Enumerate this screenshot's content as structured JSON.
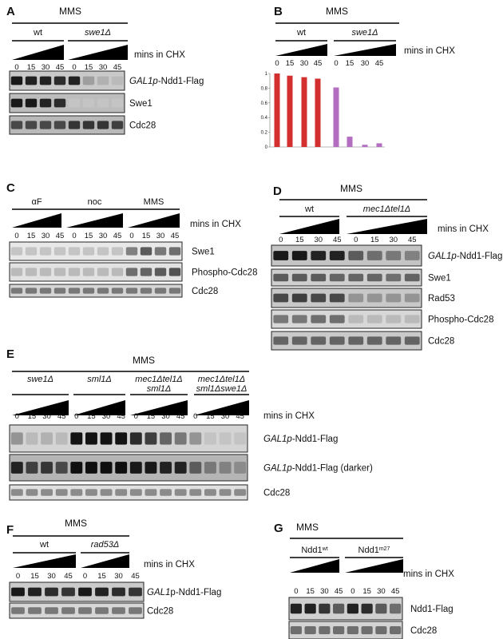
{
  "panels": [
    {
      "id": "A",
      "letter": "A",
      "header": "MMS",
      "mins_label": "mins in CHX",
      "groups": [
        {
          "label": [
            {
              "t": "wt"
            }
          ]
        },
        {
          "label": [
            {
              "t": "swe1Δ",
              "i": true
            }
          ]
        }
      ],
      "timepoints": [
        "0",
        "15",
        "30",
        "45"
      ],
      "blots": [
        {
          "label": [
            {
              "t": "GAL1p",
              "i": true
            },
            {
              "t": "-Ndd1-Flag"
            }
          ],
          "bands": [
            0.95,
            0.9,
            0.9,
            0.85,
            0.9,
            0.25,
            0.15,
            0.1
          ],
          "bg": "#c9c9c9"
        },
        {
          "label": [
            {
              "t": "Swe1"
            }
          ],
          "bands": [
            0.95,
            0.95,
            0.9,
            0.85,
            0.05,
            0.05,
            0.05,
            0.05
          ],
          "bg": "#bdbdbd"
        },
        {
          "label": [
            {
              "t": "Cdc28"
            }
          ],
          "bands": [
            0.7,
            0.7,
            0.7,
            0.7,
            0.8,
            0.8,
            0.8,
            0.75
          ],
          "bg": "#b9b9b9"
        }
      ]
    },
    {
      "id": "C",
      "letter": "C",
      "header": "",
      "mins_label": "mins in CHX",
      "groups": [
        {
          "label": [
            {
              "t": "αF"
            }
          ]
        },
        {
          "label": [
            {
              "t": "noc"
            }
          ]
        },
        {
          "label": [
            {
              "t": "MMS"
            }
          ]
        }
      ],
      "timepoints": [
        "0",
        "15",
        "30",
        "45"
      ],
      "blots": [
        {
          "label": [
            {
              "t": "Swe1"
            }
          ],
          "bands": [
            0.05,
            0.05,
            0.05,
            0.05,
            0.05,
            0.05,
            0.05,
            0.05,
            0.4,
            0.6,
            0.45,
            0.5
          ],
          "bg": "#e8e8e8"
        },
        {
          "label": [
            {
              "t": "Phospho-Cdc28"
            }
          ],
          "bands": [
            0.1,
            0.1,
            0.1,
            0.1,
            0.1,
            0.1,
            0.1,
            0.1,
            0.5,
            0.55,
            0.6,
            0.65
          ],
          "bg": "#e2e2e2"
        },
        {
          "label": [
            {
              "t": "Cdc28"
            }
          ],
          "bands": [
            0.45,
            0.45,
            0.45,
            0.45,
            0.45,
            0.45,
            0.45,
            0.45,
            0.45,
            0.45,
            0.45,
            0.45
          ],
          "bg": "#d5d5d5"
        }
      ]
    },
    {
      "id": "D",
      "letter": "D",
      "header": "MMS",
      "mins_label": "mins in CHX",
      "groups": [
        {
          "label": [
            {
              "t": "wt"
            }
          ]
        },
        {
          "label": [
            {
              "t": "mec1Δtel1Δ",
              "i": true
            }
          ]
        }
      ],
      "timepoints": [
        "0",
        "15",
        "30",
        "45"
      ],
      "blots": [
        {
          "label": [
            {
              "t": "GAL1p",
              "i": true
            },
            {
              "t": "-Ndd1-Flag"
            }
          ],
          "bands": [
            0.95,
            0.95,
            0.9,
            0.9,
            0.6,
            0.5,
            0.45,
            0.4
          ],
          "bg": "#c4c4c4"
        },
        {
          "label": [
            {
              "t": "Swe1"
            }
          ],
          "bands": [
            0.6,
            0.6,
            0.6,
            0.55,
            0.55,
            0.55,
            0.5,
            0.55
          ],
          "bg": "#cfcfcf"
        },
        {
          "label": [
            {
              "t": "Rad53"
            }
          ],
          "bands": [
            0.7,
            0.75,
            0.7,
            0.7,
            0.3,
            0.3,
            0.3,
            0.3
          ],
          "bg": "#c8c8c8"
        },
        {
          "label": [
            {
              "t": "Phospho-Cdc28"
            }
          ],
          "bands": [
            0.45,
            0.45,
            0.5,
            0.5,
            0.1,
            0.1,
            0.1,
            0.1
          ],
          "bg": "#d7d7d7"
        },
        {
          "label": [
            {
              "t": "Cdc28"
            }
          ],
          "bands": [
            0.55,
            0.55,
            0.55,
            0.55,
            0.55,
            0.55,
            0.55,
            0.55
          ],
          "bg": "#cacaca"
        }
      ]
    },
    {
      "id": "E",
      "letter": "E",
      "header": "MMS",
      "mins_label": "mins in CHX",
      "groups": [
        {
          "label": [
            {
              "t": "swe1Δ",
              "i": true
            }
          ]
        },
        {
          "label": [
            {
              "t": "sml1Δ",
              "i": true
            }
          ]
        },
        {
          "label": [
            {
              "t": "mec1Δtel1Δ",
              "i": true
            }
          ],
          "label2": [
            {
              "t": "sml1Δ",
              "i": true
            }
          ]
        },
        {
          "label": [
            {
              "t": "mec1Δtel1Δ",
              "i": true
            }
          ],
          "label2": [
            {
              "t": "sml1Δswe1Δ",
              "i": true
            }
          ]
        }
      ],
      "timepoints": [
        "0",
        "15",
        "30",
        "45"
      ],
      "blots": [
        {
          "label": [
            {
              "t": "GAL1p",
              "i": true
            },
            {
              "t": "-Ndd1-Flag"
            }
          ],
          "bands": [
            0.3,
            0.1,
            0.15,
            0.1,
            0.98,
            0.98,
            0.98,
            0.98,
            0.85,
            0.75,
            0.55,
            0.45,
            0.3,
            0.05,
            0.05,
            0.05
          ],
          "bg": "#d4d4d4"
        },
        {
          "label": [
            {
              "t": "GAL1p",
              "i": true
            },
            {
              "t": "-Ndd1-Flag (darker)"
            }
          ],
          "bands": [
            0.9,
            0.75,
            0.8,
            0.7,
            1.0,
            1.0,
            1.0,
            1.0,
            0.95,
            0.95,
            0.9,
            0.9,
            0.6,
            0.45,
            0.4,
            0.35
          ],
          "bg": "#b5b5b5"
        },
        {
          "label": [
            {
              "t": "Cdc28"
            }
          ],
          "bands": [
            0.35,
            0.35,
            0.35,
            0.35,
            0.35,
            0.35,
            0.35,
            0.35,
            0.35,
            0.35,
            0.35,
            0.35,
            0.35,
            0.35,
            0.35,
            0.35
          ],
          "bg": "#e0e0e0"
        }
      ]
    },
    {
      "id": "F",
      "letter": "F",
      "header": "MMS",
      "mins_label": "mins in CHX",
      "groups": [
        {
          "label": [
            {
              "t": "wt"
            }
          ]
        },
        {
          "label": [
            {
              "t": "rad53Δ",
              "i": true
            }
          ]
        }
      ],
      "timepoints": [
        "0",
        "15",
        "30",
        "45"
      ],
      "blots": [
        {
          "label": [
            {
              "t": "GAL1",
              "i": true
            },
            {
              "t": "p-Ndd1-Flag"
            }
          ],
          "bands": [
            0.95,
            0.9,
            0.85,
            0.8,
            0.95,
            0.9,
            0.85,
            0.8
          ],
          "bg": "#cbcbcb"
        },
        {
          "label": [
            {
              "t": "Cdc28"
            }
          ],
          "bands": [
            0.45,
            0.45,
            0.45,
            0.45,
            0.45,
            0.45,
            0.45,
            0.45
          ],
          "bg": "#d6d6d6"
        }
      ]
    },
    {
      "id": "G",
      "letter": "G",
      "header": "MMS",
      "mins_label": "mins in CHX",
      "groups": [
        {
          "label": [
            {
              "t": "Ndd1"
            },
            {
              "t": "wt",
              "sup": true
            }
          ]
        },
        {
          "label": [
            {
              "t": "Ndd1"
            },
            {
              "t": "m27",
              "sup": true
            }
          ]
        }
      ],
      "timepoints": [
        "0",
        "15",
        "30",
        "45"
      ],
      "blots": [
        {
          "label": [
            {
              "t": "Ndd1-Flag"
            }
          ],
          "bands": [
            0.9,
            0.9,
            0.8,
            0.6,
            0.9,
            0.85,
            0.6,
            0.5
          ],
          "bg": "#d0d0d0"
        },
        {
          "label": [
            {
              "t": "Cdc28"
            }
          ],
          "bands": [
            0.5,
            0.5,
            0.5,
            0.5,
            0.5,
            0.5,
            0.5,
            0.5
          ],
          "bg": "#d3d3d3"
        }
      ]
    }
  ],
  "chart_data": {
    "type": "bar",
    "letter": "B",
    "header": "MMS",
    "mins_label": "mins in CHX",
    "groups": [
      {
        "label": [
          {
            "t": "wt"
          }
        ]
      },
      {
        "label": [
          {
            "t": "swe1Δ",
            "i": true
          }
        ]
      }
    ],
    "timepoints": [
      "0",
      "15",
      "30",
      "45"
    ],
    "y_ticks": [
      "0",
      "0.2",
      "0.4",
      "0.6",
      "0.8",
      "1"
    ],
    "ylim": [
      0,
      1
    ],
    "series": [
      {
        "values": [
          1.0,
          0.97,
          0.95,
          0.93
        ],
        "color": "#d42f2f"
      },
      {
        "values": [
          0.81,
          0.14,
          0.03,
          0.05
        ],
        "color": "#b46ec1"
      }
    ]
  }
}
